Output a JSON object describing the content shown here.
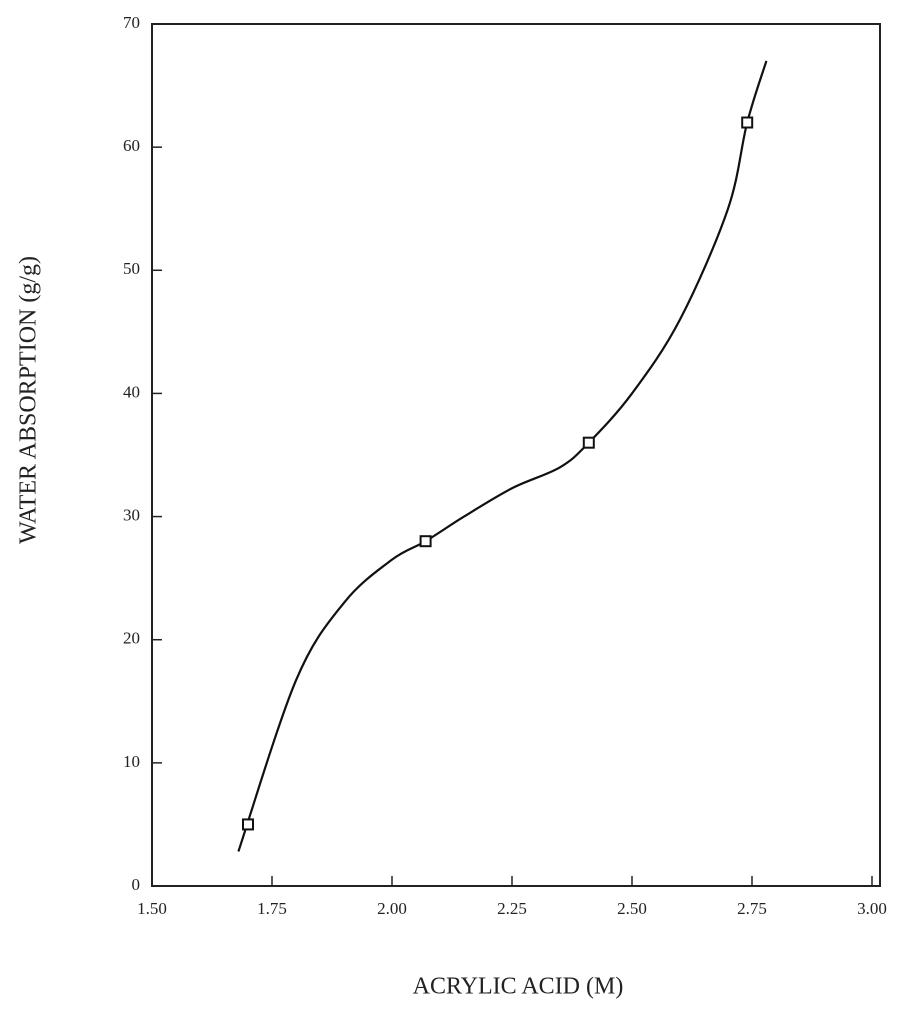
{
  "chart_data": {
    "type": "scatter",
    "x_label": "ACRYLIC ACID (M)",
    "y_label": "WATER ABSORPTION (g/g)",
    "x": [
      1.7,
      2.07,
      2.41,
      2.74
    ],
    "values": [
      5,
      28,
      36,
      62
    ],
    "color": "#111111",
    "marker": "square",
    "curve": {
      "x": [
        1.68,
        1.8,
        1.9,
        2.0,
        2.07,
        2.15,
        2.25,
        2.35,
        2.41,
        2.5,
        2.6,
        2.7,
        2.74,
        2.78
      ],
      "values": [
        2.8,
        16.7,
        23,
        26.5,
        28,
        30,
        32.3,
        34,
        36,
        40,
        46,
        55,
        62,
        67
      ]
    },
    "xlim": [
      1.5,
      3.0
    ],
    "ylim": [
      0,
      70
    ],
    "xticks": [
      {
        "value": 1.5,
        "label": "1.50"
      },
      {
        "value": 1.75,
        "label": "1.75"
      },
      {
        "value": 2.0,
        "label": "2.00"
      },
      {
        "value": 2.25,
        "label": "2.25"
      },
      {
        "value": 2.5,
        "label": "2.50"
      },
      {
        "value": 2.75,
        "label": "2.75"
      },
      {
        "value": 3.0,
        "label": "3.00"
      }
    ],
    "yticks": [
      0,
      10,
      20,
      30,
      40,
      50,
      60,
      70
    ],
    "grid": false
  }
}
